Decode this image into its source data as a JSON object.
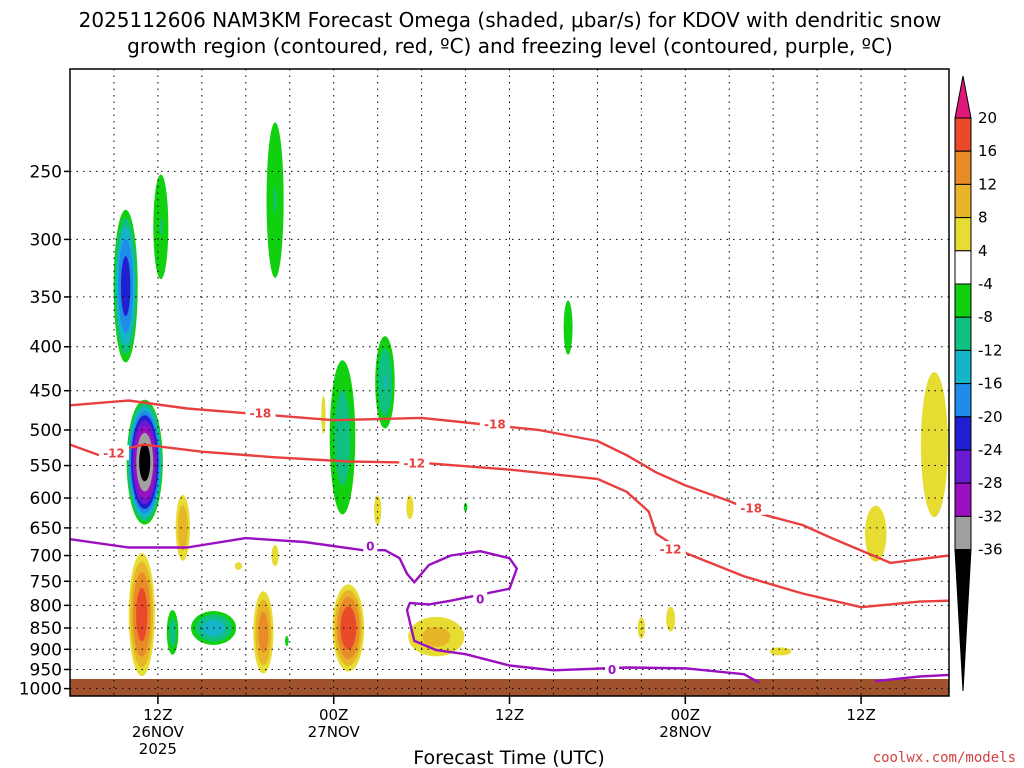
{
  "title": {
    "line1": "2025112606 NAM3KM Forecast Omega (shaded, μbar/s) for KDOV with dendritic snow",
    "line2": "growth region (contoured, red, ºC) and freezing level (contoured, purple, ºC)"
  },
  "credit": "coolwx.com/models",
  "colors": {
    "dgz_contour": "#e84040",
    "freezing_contour": "#9a10c0",
    "ground": "#a0522d"
  },
  "chart_data": {
    "type": "heatmap",
    "xlabel": "Forecast Time (UTC)",
    "ylabel": "",
    "x_units": "forecast hours from 2025-11-26 06Z",
    "xlim": [
      0,
      60
    ],
    "ylim": [
      1020,
      190
    ],
    "y_ticks": [
      "250",
      "300",
      "350",
      "400",
      "450",
      "500",
      "550",
      "600",
      "650",
      "700",
      "750",
      "800",
      "850",
      "900",
      "950",
      "1000"
    ],
    "x_ticks": [
      {
        "hour": 6,
        "label": "12Z",
        "date": "26NOV",
        "year": "2025"
      },
      {
        "hour": 18,
        "label": "00Z",
        "date": "27NOV",
        "year": ""
      },
      {
        "hour": 30,
        "label": "12Z",
        "date": "",
        "year": ""
      },
      {
        "hour": 42,
        "label": "00Z",
        "date": "28NOV",
        "year": ""
      },
      {
        "hour": 54,
        "label": "12Z",
        "date": "",
        "year": ""
      }
    ],
    "colorbar": {
      "levels": [
        "20",
        "16",
        "12",
        "8",
        "4",
        "-4",
        "-8",
        "-12",
        "-16",
        "-20",
        "-24",
        "-28",
        "-32",
        "-36"
      ],
      "bins": [
        {
          "range": "<-36",
          "color": "#000000"
        },
        {
          "range": "-36..-32",
          "color": "#a0a0a0"
        },
        {
          "range": "-32..-28",
          "color": "#9a10c0"
        },
        {
          "range": "-28..-24",
          "color": "#6a1ad0"
        },
        {
          "range": "-24..-20",
          "color": "#2020d0"
        },
        {
          "range": "-20..-16",
          "color": "#1e8ce8"
        },
        {
          "range": "-16..-12",
          "color": "#16b4c8"
        },
        {
          "range": "-12..-8",
          "color": "#10c080"
        },
        {
          "range": "-8..-4",
          "color": "#10d010"
        },
        {
          "range": "-4..4",
          "color": "#ffffff"
        },
        {
          "range": "4..8",
          "color": "#e6dc32"
        },
        {
          "range": "8..12",
          "color": "#e8b428"
        },
        {
          "range": "12..16",
          "color": "#e88c28"
        },
        {
          "range": "16..20",
          "color": "#e84a2a"
        },
        {
          "range": ">20",
          "color": "#e0187a"
        }
      ]
    },
    "omega_areas": [
      {
        "hour": 3.8,
        "p": 340,
        "dh": 0.9,
        "dp": 75,
        "peak": -22
      },
      {
        "hour": 6.2,
        "p": 290,
        "dh": 0.7,
        "dp": 55,
        "peak": -8
      },
      {
        "hour": 14.0,
        "p": 270,
        "dh": 0.8,
        "dp": 75,
        "peak": -8
      },
      {
        "hour": 5.1,
        "p": 545,
        "dh": 1.3,
        "dp": 95,
        "peak": -38
      },
      {
        "hour": 18.6,
        "p": 510,
        "dh": 1.1,
        "dp": 130,
        "peak": -10
      },
      {
        "hour": 21.5,
        "p": 440,
        "dh": 0.8,
        "dp": 65,
        "peak": -12
      },
      {
        "hour": 34.0,
        "p": 380,
        "dh": 0.5,
        "dp": 45,
        "peak": -6
      },
      {
        "hour": 27.0,
        "p": 615,
        "dh": 0.2,
        "dp": 12,
        "peak": -6
      },
      {
        "hour": 9.8,
        "p": 850,
        "dh": 1.8,
        "dp": 45,
        "peak": -14
      },
      {
        "hour": 7.0,
        "p": 860,
        "dh": 0.5,
        "dp": 65,
        "peak": -10
      },
      {
        "hour": 14.8,
        "p": 880,
        "dh": 0.2,
        "dp": 20,
        "peak": -6
      },
      {
        "hour": 4.9,
        "p": 820,
        "dh": 1.0,
        "dp": 150,
        "peak": 18
      },
      {
        "hour": 7.7,
        "p": 650,
        "dh": 0.6,
        "dp": 70,
        "peak": 11
      },
      {
        "hour": 13.2,
        "p": 860,
        "dh": 0.8,
        "dp": 110,
        "peak": 14
      },
      {
        "hour": 19.0,
        "p": 850,
        "dh": 1.2,
        "dp": 110,
        "peak": 19
      },
      {
        "hour": 25.0,
        "p": 870,
        "dh": 2.5,
        "dp": 60,
        "peak": 9
      },
      {
        "hour": 55.0,
        "p": 660,
        "dh": 1.5,
        "dp": 100,
        "peak": 5
      },
      {
        "hour": 59.0,
        "p": 520,
        "dh": 1.5,
        "dp": 160,
        "peak": 6
      },
      {
        "hour": 39.0,
        "p": 850,
        "dh": 0.5,
        "dp": 50,
        "peak": 5
      },
      {
        "hour": 41.0,
        "p": 830,
        "dh": 0.5,
        "dp": 45,
        "peak": 6
      },
      {
        "hour": 48.5,
        "p": 905,
        "dh": 1.5,
        "dp": 20,
        "peak": 5
      },
      {
        "hour": 17.3,
        "p": 480,
        "dh": 0.3,
        "dp": 50,
        "peak": 5
      },
      {
        "hour": 14.0,
        "p": 700,
        "dh": 0.5,
        "dp": 40,
        "peak": 5
      },
      {
        "hour": 21.0,
        "p": 620,
        "dh": 0.5,
        "dp": 50,
        "peak": 5
      },
      {
        "hour": 23.2,
        "p": 615,
        "dh": 0.5,
        "dp": 40,
        "peak": 5
      },
      {
        "hour": 11.5,
        "p": 720,
        "dh": 0.5,
        "dp": 15,
        "peak": 5
      }
    ],
    "contours": [
      {
        "name": "dgz -18C",
        "label": "-18",
        "color": "#e84040",
        "points": [
          [
            0,
            468
          ],
          [
            4,
            462
          ],
          [
            8,
            472
          ],
          [
            12,
            478
          ],
          [
            18,
            487
          ],
          [
            24,
            484
          ],
          [
            28,
            492
          ],
          [
            32,
            500
          ],
          [
            36,
            515
          ],
          [
            38,
            535
          ],
          [
            40,
            560
          ],
          [
            42,
            580
          ],
          [
            45,
            605
          ],
          [
            47,
            625
          ],
          [
            50,
            645
          ],
          [
            52,
            668
          ],
          [
            56,
            714
          ],
          [
            60,
            700
          ]
        ],
        "labels": [
          [
            13,
            478
          ],
          [
            29,
            492
          ],
          [
            46.5,
            616
          ]
        ]
      },
      {
        "name": "dgz -12C",
        "label": "-12",
        "color": "#e84040",
        "points": [
          [
            0,
            520
          ],
          [
            2,
            535
          ],
          [
            5,
            520
          ],
          [
            9,
            530
          ],
          [
            14,
            538
          ],
          [
            19,
            544
          ],
          [
            24,
            546
          ],
          [
            30,
            556
          ],
          [
            36,
            570
          ],
          [
            38,
            590
          ],
          [
            39.5,
            622
          ],
          [
            40,
            660
          ],
          [
            42,
            695
          ],
          [
            46,
            740
          ],
          [
            50,
            775
          ],
          [
            54,
            804
          ],
          [
            58,
            792
          ],
          [
            60,
            790
          ]
        ],
        "labels": [
          [
            3,
            532
          ],
          [
            23.5,
            546
          ],
          [
            41,
            688
          ]
        ]
      },
      {
        "name": "freezing level 0C",
        "label": "0",
        "color": "#9a10c0",
        "points": [
          [
            0,
            670
          ],
          [
            4,
            685
          ],
          [
            8,
            685
          ],
          [
            12,
            668
          ],
          [
            16,
            675
          ],
          [
            20,
            690
          ],
          [
            21.5,
            690
          ],
          [
            22.5,
            705
          ],
          [
            23,
            735
          ],
          [
            23.5,
            752
          ],
          [
            24.5,
            718
          ],
          [
            26,
            700
          ],
          [
            28,
            692
          ],
          [
            30,
            705
          ],
          [
            30.5,
            725
          ],
          [
            30,
            765
          ],
          [
            26,
            790
          ],
          [
            24.5,
            798
          ],
          [
            23.2,
            795
          ],
          [
            23,
            810
          ],
          [
            23.5,
            880
          ],
          [
            25,
            902
          ],
          [
            27,
            912
          ],
          [
            30,
            940
          ],
          [
            33,
            952
          ],
          [
            38,
            945
          ],
          [
            42,
            947
          ],
          [
            46,
            962
          ],
          [
            47,
            983
          ]
        ],
        "labels": [
          [
            20.5,
            682
          ],
          [
            28,
            786
          ],
          [
            37,
            950
          ]
        ]
      },
      {
        "name": "freezing level 0C (east)",
        "label": "",
        "color": "#9a10c0",
        "points": [
          [
            55,
            980
          ],
          [
            58,
            968
          ],
          [
            60,
            964
          ]
        ],
        "labels": []
      }
    ]
  }
}
